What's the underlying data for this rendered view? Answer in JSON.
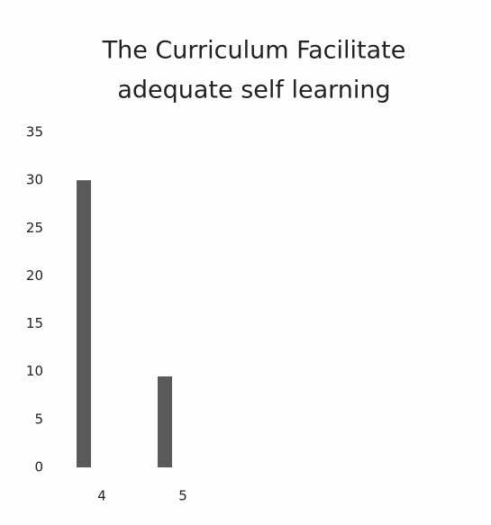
{
  "chart_data": {
    "type": "bar",
    "title": [
      "The Curriculum Facilitate",
      "adequate self learning"
    ],
    "categories": [
      "4",
      "5"
    ],
    "values": [
      30,
      9.5
    ],
    "color": "#5a5a5a",
    "ylim": [
      0,
      35
    ],
    "yticks": [
      0,
      5,
      10,
      15,
      20,
      25,
      30,
      35
    ],
    "grid": false
  }
}
